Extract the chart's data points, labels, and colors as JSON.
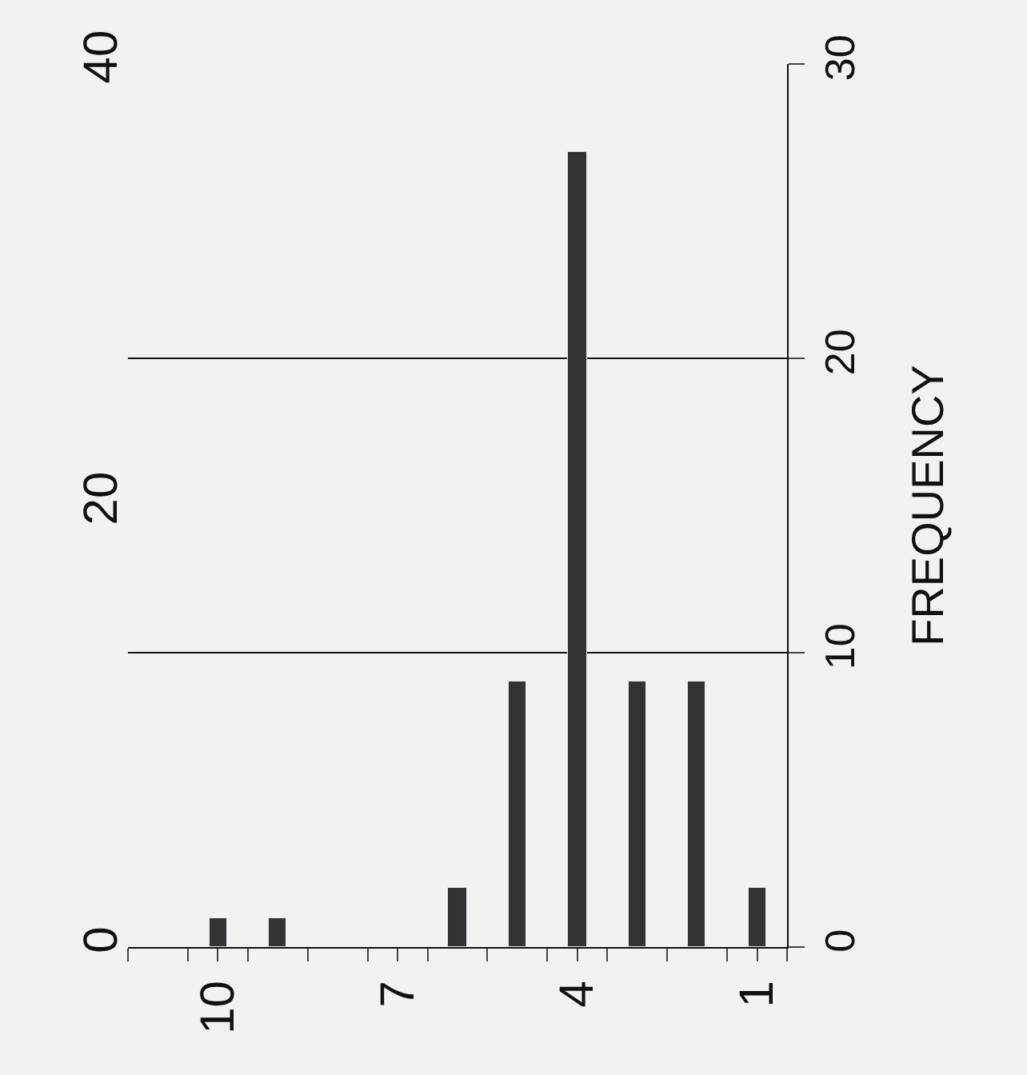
{
  "chart_data": {
    "type": "bar",
    "x": [
      10,
      9,
      6,
      5,
      4,
      3,
      2,
      1
    ],
    "values": [
      1,
      1,
      2,
      9,
      27,
      9,
      9,
      2
    ],
    "color": "#333333",
    "xlim": [
      11.5,
      0.5
    ],
    "xticks": [
      {
        "value": 11.5,
        "label": null
      },
      {
        "value": 10.5,
        "label": null
      },
      10,
      {
        "value": 9.5,
        "label": null
      },
      {
        "value": 8.5,
        "label": null
      },
      7,
      {
        "value": 7.5,
        "label": null
      },
      {
        "value": 6.5,
        "label": null
      },
      {
        "value": 5.5,
        "label": null
      },
      4,
      {
        "value": 4.5,
        "label": null
      },
      {
        "value": 3.5,
        "label": null
      },
      {
        "value": 2.5,
        "label": null
      },
      1,
      {
        "value": 1.5,
        "label": null
      },
      {
        "value": 0.5,
        "label": null
      }
    ],
    "ylim": [
      0,
      30
    ],
    "yticks": [
      0,
      10,
      20,
      30
    ],
    "y2lim": [
      0,
      40
    ],
    "y2ticks": [
      0,
      20,
      40
    ],
    "ylabel": "FREQUENCY",
    "grid": "y"
  }
}
